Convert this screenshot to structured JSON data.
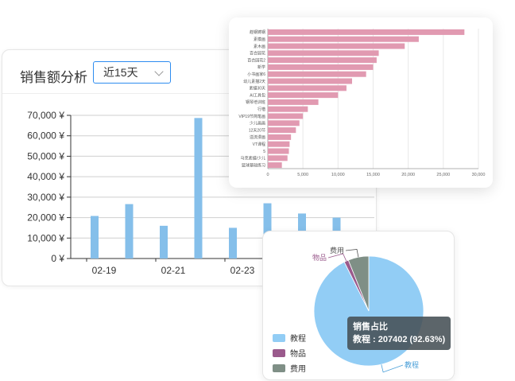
{
  "sales": {
    "title": "销售额分析",
    "range_selected": "近15天",
    "colors": {
      "bar": "#85bfea",
      "grid": "#cfcfcf",
      "axis": "#333333"
    }
  },
  "top_chart": {
    "colors": {
      "bar": "#e19ab1",
      "grid": "#e8e8e8"
    }
  },
  "pie": {
    "tooltip_title": "销售占比",
    "tooltip_text": "教程 : 207402 (92.63%)",
    "colors": {
      "教程": "#92cdf5",
      "物品": "#9a5a8c",
      "费用": "#7f8f86"
    }
  },
  "chart_data": [
    {
      "type": "bar",
      "ylim": [
        0,
        70000
      ],
      "y_ticks": [
        "0 ¥",
        "10,000 ¥",
        "20,000 ¥",
        "30,000 ¥",
        "40,000 ¥",
        "50,000 ¥",
        "60,000 ¥",
        "70,000 ¥"
      ],
      "x_tick_labels": [
        "02-19",
        "02-21",
        "02-23"
      ],
      "values": [
        20800,
        26600,
        16000,
        68700,
        15000,
        27000,
        22000,
        20000
      ]
    },
    {
      "type": "bar",
      "orientation": "horizontal",
      "categories": [
        "趋钢铸钢",
        "素模画",
        "素木画",
        "百合园花",
        "百合园花2",
        "新学",
        "小书画家6",
        "幼儿素描2天",
        "素描30天",
        "AI工具包",
        "钢琴培训班",
        "行楷",
        "VIP19节简笔画",
        "少儿画画",
        "12天20节",
        "溢流漫画",
        "VT课程",
        "5",
        "马克素描/少儿",
        "篮球基础练习"
      ],
      "values": [
        28000,
        21500,
        19500,
        15800,
        15500,
        15000,
        14000,
        12000,
        11200,
        10000,
        7200,
        5700,
        5000,
        4500,
        4000,
        3300,
        3100,
        3000,
        2800,
        2000
      ],
      "x_ticks": [
        "0",
        "5,000",
        "10,000",
        "15,000",
        "20,000",
        "25,000",
        "30,000"
      ],
      "xlim": [
        0,
        30000
      ]
    },
    {
      "type": "pie",
      "title": "销售占比",
      "legend": [
        "教程",
        "物品",
        "费用"
      ],
      "slices": [
        {
          "name": "教程",
          "value": 207402,
          "percent": 92.63
        },
        {
          "name": "物品",
          "value": 2900,
          "percent": 1.3
        },
        {
          "name": "费用",
          "value": 13600,
          "percent": 6.07
        }
      ]
    }
  ]
}
